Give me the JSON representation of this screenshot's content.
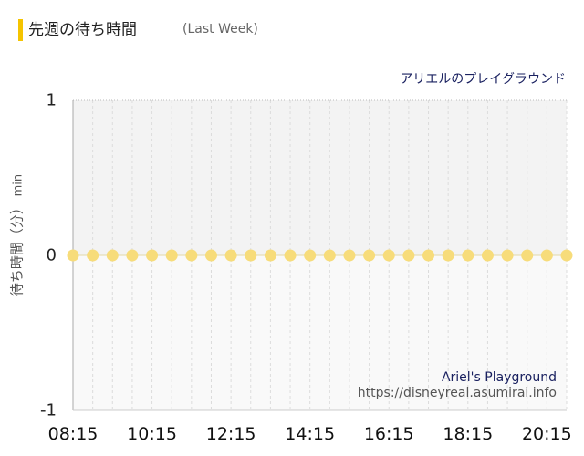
{
  "header": {
    "title": "先週の待ち時間",
    "subtitle": "(Last Week)"
  },
  "attraction": {
    "name": "アリエルのプレイグラウンド"
  },
  "credit": {
    "name": "Ariel's Playground",
    "url": "https://disneyreal.asumirai.info"
  },
  "colors": {
    "accent": "#f5c400",
    "point": "#f7dc7a",
    "title_text": "#1a2160"
  },
  "chart_data": {
    "type": "scatter",
    "ylabel": "待ち時間（分）",
    "ylabel_unit": "min",
    "ylim": [
      -1,
      1
    ],
    "yticks": [
      "1",
      "0",
      "-1"
    ],
    "x_tick_labels": [
      "08:15",
      "10:15",
      "12:15",
      "14:15",
      "16:15",
      "18:15",
      "20:15"
    ],
    "x": [
      "08:15",
      "08:45",
      "09:15",
      "09:45",
      "10:15",
      "10:45",
      "11:15",
      "11:45",
      "12:15",
      "12:45",
      "13:15",
      "13:45",
      "14:15",
      "14:45",
      "15:15",
      "15:45",
      "16:15",
      "16:45",
      "17:15",
      "17:45",
      "18:15",
      "18:45",
      "19:15",
      "19:45",
      "20:15",
      "20:45"
    ],
    "values": [
      0,
      0,
      0,
      0,
      0,
      0,
      0,
      0,
      0,
      0,
      0,
      0,
      0,
      0,
      0,
      0,
      0,
      0,
      0,
      0,
      0,
      0,
      0,
      0,
      0,
      0
    ],
    "grid": true,
    "legend": "none"
  }
}
